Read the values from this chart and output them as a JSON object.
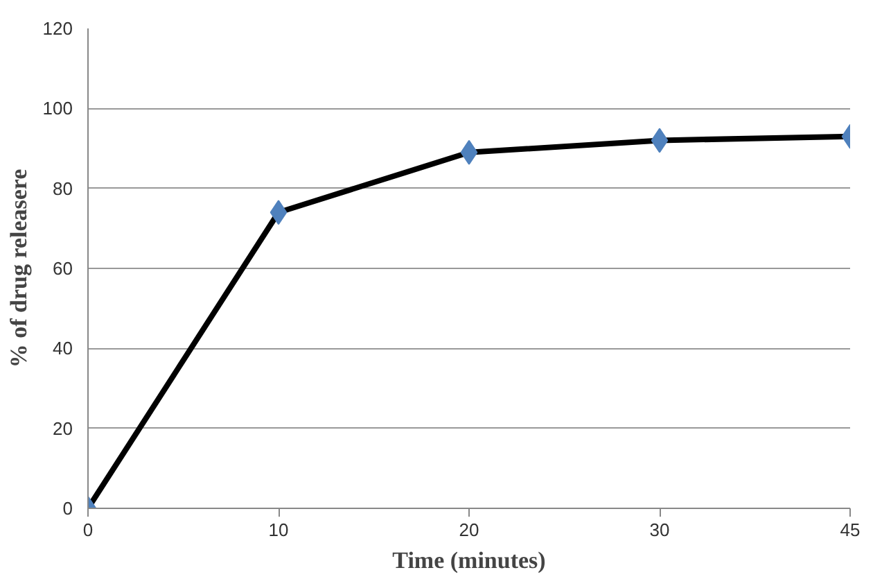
{
  "chart_data": {
    "type": "line",
    "xlabel": "Time (minutes)",
    "ylabel": "% of drug releasere",
    "categories": [
      "0",
      "10",
      "20",
      "30",
      "45"
    ],
    "series": [
      {
        "color": "#000000",
        "colors": [
          "#4f81bd",
          "#4f81bd",
          "#4f81bd",
          "#4f81bd",
          "#4f81bd"
        ],
        "values": [
          0,
          74,
          89,
          92,
          93
        ]
      }
    ],
    "ylim": [
      0,
      120
    ],
    "yticks": [
      0,
      20,
      40,
      60,
      80,
      100,
      120
    ],
    "grid": "y",
    "marker": "diamond",
    "line_style": "solid"
  }
}
